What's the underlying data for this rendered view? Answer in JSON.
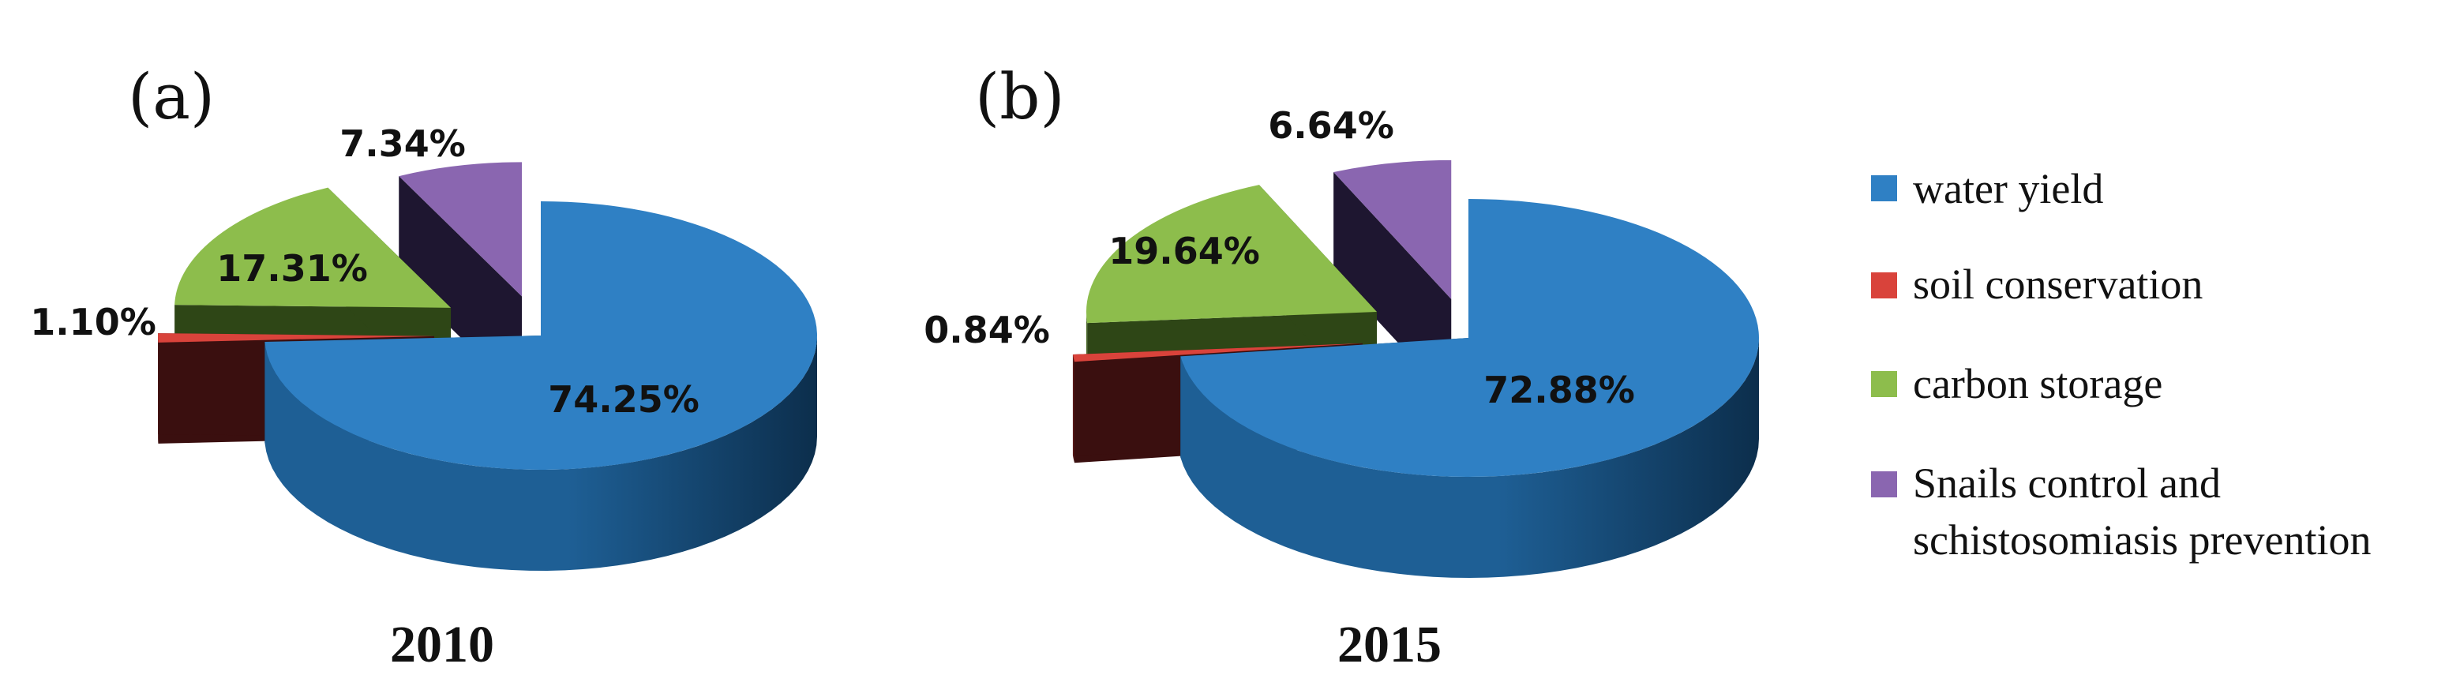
{
  "chart_data": [
    {
      "type": "pie",
      "panel_label": "(a)",
      "year": "2010",
      "categories": [
        "water yield",
        "soil conservation",
        "carbon storage",
        "Snails control and schistosomiasis prevention"
      ],
      "values": [
        74.25,
        1.1,
        17.31,
        7.34
      ],
      "value_labels": [
        "74.25%",
        "1.10%",
        "17.31%",
        "7.34%"
      ],
      "exploded": [
        false,
        true,
        true,
        true
      ],
      "three_d": true
    },
    {
      "type": "pie",
      "panel_label": "(b)",
      "year": "2015",
      "categories": [
        "water yield",
        "soil conservation",
        "carbon storage",
        "Snails control and schistosomiasis prevention"
      ],
      "values": [
        72.88,
        0.84,
        19.64,
        6.64
      ],
      "value_labels": [
        "72.88%",
        "0.84%",
        "19.64%",
        "6.64%"
      ],
      "exploded": [
        false,
        true,
        true,
        true
      ],
      "three_d": true
    }
  ],
  "legend": {
    "placement": "right",
    "items": [
      {
        "label": "water yield",
        "color": "#2F80C4"
      },
      {
        "label": "soil conservation",
        "color": "#D9433B"
      },
      {
        "label": "carbon storage",
        "color": "#8DBD4C"
      },
      {
        "label_lines": [
          "Snails control and",
          "schistosomiasis prevention"
        ],
        "color": "#8A66B0"
      }
    ]
  },
  "colors": {
    "top": [
      "#2F80C4",
      "#D9433B",
      "#8DBD4C",
      "#8A66B0"
    ],
    "side": [
      "#1E5F95",
      "#5A1A1A",
      "#4E6F28",
      "#2C2240"
    ],
    "side_dark": [
      "#0C2E4C",
      "#3A0F0F",
      "#2E4616",
      "#1E1630"
    ]
  }
}
